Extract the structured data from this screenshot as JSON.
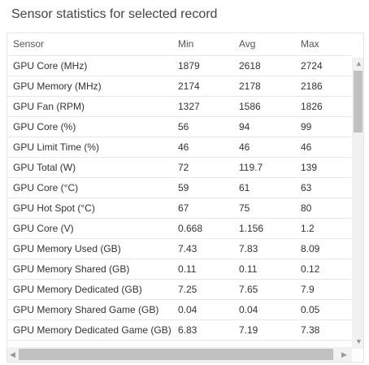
{
  "header": {
    "title": "Sensor statistics for selected record"
  },
  "table": {
    "columns": [
      "Sensor",
      "Min",
      "Avg",
      "Max"
    ],
    "rows": [
      [
        "GPU Core (MHz)",
        "1879",
        "2618",
        "2724"
      ],
      [
        "GPU Memory (MHz)",
        "2174",
        "2178",
        "2186"
      ],
      [
        "GPU Fan (RPM)",
        "1327",
        "1586",
        "1826"
      ],
      [
        "GPU Core (%)",
        "56",
        "94",
        "99"
      ],
      [
        "GPU Limit Time (%)",
        "46",
        "46",
        "46"
      ],
      [
        "GPU Total (W)",
        "72",
        "119.7",
        "139"
      ],
      [
        "GPU Core (°C)",
        "59",
        "61",
        "63"
      ],
      [
        "GPU Hot Spot (°C)",
        "67",
        "75",
        "80"
      ],
      [
        "GPU Core (V)",
        "0.668",
        "1.156",
        "1.2"
      ],
      [
        "GPU Memory Used (GB)",
        "7.43",
        "7.83",
        "8.09"
      ],
      [
        "GPU Memory Shared (GB)",
        "0.11",
        "0.11",
        "0.12"
      ],
      [
        "GPU Memory Dedicated (GB)",
        "7.25",
        "7.65",
        "7.9"
      ],
      [
        "GPU Memory Shared Game (GB)",
        "0.04",
        "0.04",
        "0.05"
      ],
      [
        "GPU Memory Dedicated Game (GB)",
        "6.83",
        "7.19",
        "7.38"
      ]
    ]
  }
}
